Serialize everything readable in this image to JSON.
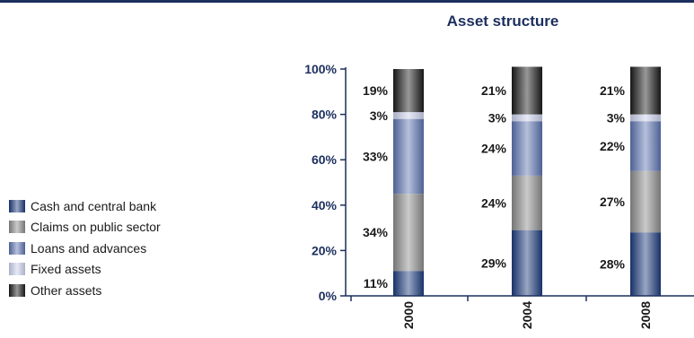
{
  "chart_data": {
    "type": "bar",
    "stacked": true,
    "title": "Asset structure",
    "xlabel": "",
    "ylabel": "",
    "ylim": [
      0,
      100
    ],
    "yticks": [
      "0%",
      "20%",
      "40%",
      "60%",
      "80%",
      "100%"
    ],
    "categories": [
      "2000",
      "2004",
      "2008"
    ],
    "series": [
      {
        "name": "Cash and central bank",
        "values": [
          11,
          29,
          28
        ],
        "labels": [
          "11%",
          "29%",
          "28%"
        ],
        "color": "#1c3a7a"
      },
      {
        "name": "Claims on public sector",
        "values": [
          34,
          24,
          27
        ],
        "labels": [
          "34%",
          "24%",
          "27%"
        ],
        "color": "#8a8a8a"
      },
      {
        "name": "Loans and advances",
        "values": [
          33,
          24,
          22
        ],
        "labels": [
          "33%",
          "24%",
          "22%"
        ],
        "color": "#5c72ae"
      },
      {
        "name": "Fixed assets",
        "values": [
          3,
          3,
          3
        ],
        "labels": [
          "3%",
          "3%",
          "3%"
        ],
        "color": "#c9cfea"
      },
      {
        "name": "Other assets",
        "values": [
          19,
          21,
          21
        ],
        "labels": [
          "19%",
          "21%",
          "21%"
        ],
        "color": "#1a1a1a"
      }
    ],
    "legend": "left"
  }
}
